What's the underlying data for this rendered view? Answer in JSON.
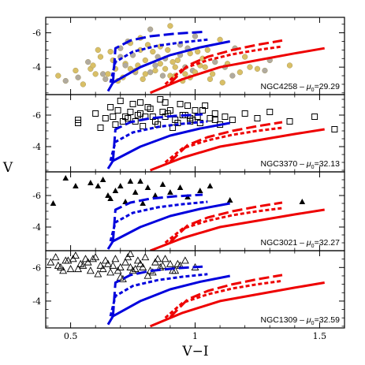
{
  "chart_data": {
    "type": "scatter",
    "xlabel": "V−I",
    "ylabel": "V",
    "xlim": [
      0.4,
      1.6
    ],
    "x_ticks": [
      "0.5",
      "1",
      "1.5"
    ],
    "x_tick_values": [
      0.5,
      1.0,
      1.5
    ],
    "colors": {
      "blue": "#0000dd",
      "red": "#ee0000",
      "filled_circle_fill": "#d9bf66",
      "filled_circle_grey": "#b0aaa0"
    },
    "model_tracks": {
      "blue_long_dash": {
        "x": [
          0.67,
          0.68,
          0.74,
          0.82,
          0.92,
          1.03
        ],
        "y": [
          -3.1,
          -5.1,
          -5.55,
          -5.8,
          -5.95,
          -6.05
        ]
      },
      "blue_short_dash": {
        "x": [
          0.66,
          0.68,
          0.75,
          0.85,
          0.95,
          1.05
        ],
        "y": [
          -3.1,
          -4.3,
          -4.9,
          -5.25,
          -5.45,
          -5.6
        ]
      },
      "blue_solid": {
        "x": [
          0.65,
          0.67,
          0.78,
          0.9,
          1.02,
          1.14
        ],
        "y": [
          -2.6,
          -3.1,
          -4.0,
          -4.7,
          -5.15,
          -5.5
        ]
      },
      "red_long_dash": {
        "x": [
          0.9,
          0.97,
          1.05,
          1.15,
          1.25,
          1.35
        ],
        "y": [
          -3.05,
          -4.1,
          -4.6,
          -5.0,
          -5.3,
          -5.55
        ]
      },
      "red_short_dash": {
        "x": [
          0.88,
          0.95,
          1.05,
          1.15,
          1.25,
          1.35
        ],
        "y": [
          -3.0,
          -3.9,
          -4.4,
          -4.75,
          -5.0,
          -5.2
        ]
      },
      "red_solid": {
        "x": [
          0.82,
          0.95,
          1.1,
          1.25,
          1.4,
          1.52
        ],
        "y": [
          -2.5,
          -3.3,
          -4.0,
          -4.4,
          -4.8,
          -5.1
        ]
      }
    },
    "panels": [
      {
        "label": "NGC4258",
        "mu_value": "=29.29",
        "ylim": [
          -2.4,
          -6.9
        ],
        "y_ticks": [
          "-6",
          "-4"
        ],
        "y_tick_values": [
          -6,
          -4
        ],
        "marker": "filled-circle",
        "points": {
          "x": [
            0.45,
            0.48,
            0.52,
            0.55,
            0.57,
            0.6,
            0.62,
            0.64,
            0.66,
            0.68,
            0.7,
            0.72,
            0.74,
            0.76,
            0.78,
            0.8,
            0.82,
            0.84,
            0.86,
            0.88,
            0.9,
            0.92,
            0.94,
            0.96,
            0.98,
            1.0,
            1.02,
            1.05,
            1.08,
            1.1,
            1.13,
            1.16,
            1.2,
            1.25,
            1.3,
            1.38,
            0.58,
            0.63,
            0.67,
            0.71,
            0.75,
            0.79,
            0.83,
            0.87,
            0.91,
            0.95,
            0.99,
            1.03,
            1.07,
            1.12,
            0.61,
            0.69,
            0.73,
            0.77,
            0.81,
            0.85,
            0.89,
            0.93,
            0.97,
            1.01,
            0.65,
            0.7,
            0.74,
            0.78,
            0.82,
            0.86,
            0.9,
            0.94,
            0.98,
            1.04,
            0.72,
            0.76,
            0.8,
            0.84,
            0.88,
            0.92,
            0.96,
            1.0,
            1.06,
            1.15,
            1.22,
            1.18,
            0.53,
            0.59,
            1.11,
            1.28
          ],
          "y": [
            -3.5,
            -3.2,
            -3.8,
            -3.0,
            -4.3,
            -3.6,
            -4.6,
            -3.3,
            -4.9,
            -3.9,
            -5.1,
            -4.2,
            -5.4,
            -3.7,
            -5.7,
            -4.4,
            -6.2,
            -3.8,
            -5.2,
            -4.5,
            -6.4,
            -4.0,
            -5.3,
            -3.6,
            -4.8,
            -5.8,
            -4.1,
            -5.0,
            -4.3,
            -5.6,
            -4.2,
            -5.1,
            -4.6,
            -3.9,
            -4.4,
            -4.1,
            -3.9,
            -3.6,
            -4.4,
            -3.4,
            -4.7,
            -3.3,
            -4.9,
            -3.5,
            -4.3,
            -3.2,
            -3.8,
            -4.5,
            -3.6,
            -4.0,
            -5.0,
            -3.2,
            -5.5,
            -4.1,
            -5.3,
            -4.6,
            -5.0,
            -4.4,
            -5.1,
            -4.9,
            -3.6,
            -4.6,
            -3.9,
            -5.0,
            -3.7,
            -4.2,
            -3.5,
            -4.7,
            -3.4,
            -4.0,
            -4.1,
            -3.8,
            -3.6,
            -4.1,
            -3.9,
            -3.5,
            -4.0,
            -3.7,
            -3.3,
            -3.5,
            -4.0,
            -3.7,
            -3.4,
            -4.1,
            -3.1,
            -3.8
          ]
        }
      },
      {
        "label": "NGC3370",
        "mu_value": "=32.13",
        "ylim": [
          -2.4,
          -7.3
        ],
        "y_ticks": [
          "-6",
          "-4"
        ],
        "y_tick_values": [
          -6,
          -4
        ],
        "marker": "open-square",
        "points": {
          "x": [
            0.53,
            0.53,
            0.6,
            0.62,
            0.64,
            0.66,
            0.68,
            0.7,
            0.72,
            0.74,
            0.76,
            0.78,
            0.8,
            0.82,
            0.84,
            0.86,
            0.88,
            0.9,
            0.92,
            0.94,
            0.96,
            0.98,
            1.0,
            1.02,
            1.04,
            1.06,
            1.08,
            1.1,
            1.12,
            1.15,
            1.2,
            1.25,
            1.3,
            1.38,
            1.48,
            1.56,
            0.69,
            0.73,
            0.77,
            0.81,
            0.85,
            0.89,
            0.93,
            0.97,
            1.01,
            0.71,
            0.75,
            0.79,
            0.83,
            0.87,
            0.91,
            0.95,
            0.99,
            1.03,
            0.67,
            0.78,
            0.88,
            0.98,
            1.08
          ],
          "y": [
            -5.7,
            -5.5,
            -6.1,
            -5.2,
            -5.8,
            -6.5,
            -5.4,
            -6.9,
            -5.9,
            -6.2,
            -5.6,
            -6.8,
            -5.9,
            -6.4,
            -5.6,
            -7.0,
            -5.9,
            -6.3,
            -5.7,
            -6.7,
            -6.0,
            -5.8,
            -6.3,
            -5.5,
            -6.6,
            -5.8,
            -6.1,
            -5.4,
            -5.9,
            -5.7,
            -6.1,
            -5.8,
            -6.2,
            -5.6,
            -5.9,
            -5.1,
            -6.3,
            -5.8,
            -6.0,
            -6.5,
            -5.4,
            -6.1,
            -5.5,
            -6.6,
            -5.9,
            -5.6,
            -6.7,
            -5.3,
            -5.9,
            -6.2,
            -5.2,
            -6.0,
            -5.7,
            -6.3,
            -5.9,
            -6.1,
            -6.8,
            -5.6,
            -5.7
          ]
        }
      },
      {
        "label": "NGC3021",
        "mu_value": "=32.27",
        "ylim": [
          -2.5,
          -7.5
        ],
        "y_ticks": [
          "-6",
          "-4"
        ],
        "y_tick_values": [
          -6,
          -4
        ],
        "marker": "filled-triangle",
        "points": {
          "x": [
            0.48,
            0.52,
            0.58,
            0.61,
            0.63,
            0.66,
            0.68,
            0.7,
            0.72,
            0.74,
            0.76,
            0.79,
            0.81,
            0.84,
            0.87,
            0.9,
            0.94,
            0.97,
            1.02,
            1.06,
            1.14,
            1.43,
            0.43,
            0.65,
            0.78
          ],
          "y": [
            -7.1,
            -6.6,
            -6.8,
            -6.6,
            -7.0,
            -5.8,
            -6.3,
            -6.6,
            -5.6,
            -6.9,
            -6.2,
            -5.5,
            -6.5,
            -6.0,
            -6.7,
            -6.2,
            -6.5,
            -5.9,
            -6.3,
            -6.6,
            -5.7,
            -5.6,
            -5.5,
            -6.0,
            -6.9
          ]
        }
      },
      {
        "label": "NGC1309",
        "mu_value": "=32.59",
        "ylim": [
          -2.4,
          -7.0
        ],
        "y_ticks": [
          "-6",
          "-4"
        ],
        "y_tick_values": [
          -6,
          -4
        ],
        "marker": "open-triangle",
        "points": {
          "x": [
            0.42,
            0.44,
            0.46,
            0.48,
            0.5,
            0.52,
            0.54,
            0.56,
            0.58,
            0.6,
            0.62,
            0.64,
            0.66,
            0.68,
            0.7,
            0.72,
            0.74,
            0.76,
            0.78,
            0.8,
            0.82,
            0.84,
            0.86,
            0.88,
            0.9,
            0.92,
            0.94,
            0.96,
            1.0,
            0.45,
            0.49,
            0.53,
            0.57,
            0.61,
            0.65,
            0.69,
            0.73,
            0.77,
            0.81,
            0.85,
            0.47,
            0.51,
            0.55,
            0.59,
            0.63,
            0.67,
            0.71,
            0.75,
            0.79,
            0.83,
            0.87,
            0.91,
            0.93,
            0.7,
            0.74
          ],
          "y": [
            -6.3,
            -6.6,
            -6.0,
            -6.4,
            -5.9,
            -6.7,
            -6.2,
            -6.5,
            -5.8,
            -6.6,
            -6.1,
            -6.4,
            -5.7,
            -6.5,
            -6.0,
            -6.3,
            -6.8,
            -5.9,
            -6.2,
            -6.6,
            -5.8,
            -6.3,
            -6.0,
            -6.5,
            -6.2,
            -5.8,
            -6.1,
            -6.4,
            -6.0,
            -6.1,
            -6.4,
            -5.9,
            -6.3,
            -5.6,
            -6.2,
            -5.8,
            -6.6,
            -6.4,
            -5.5,
            -6.5,
            -5.8,
            -6.5,
            -6.1,
            -6.5,
            -5.9,
            -6.1,
            -5.3,
            -5.8,
            -6.0,
            -5.7,
            -6.1,
            -5.8,
            -6.2,
            -5.4,
            -6.0
          ]
        }
      }
    ]
  }
}
